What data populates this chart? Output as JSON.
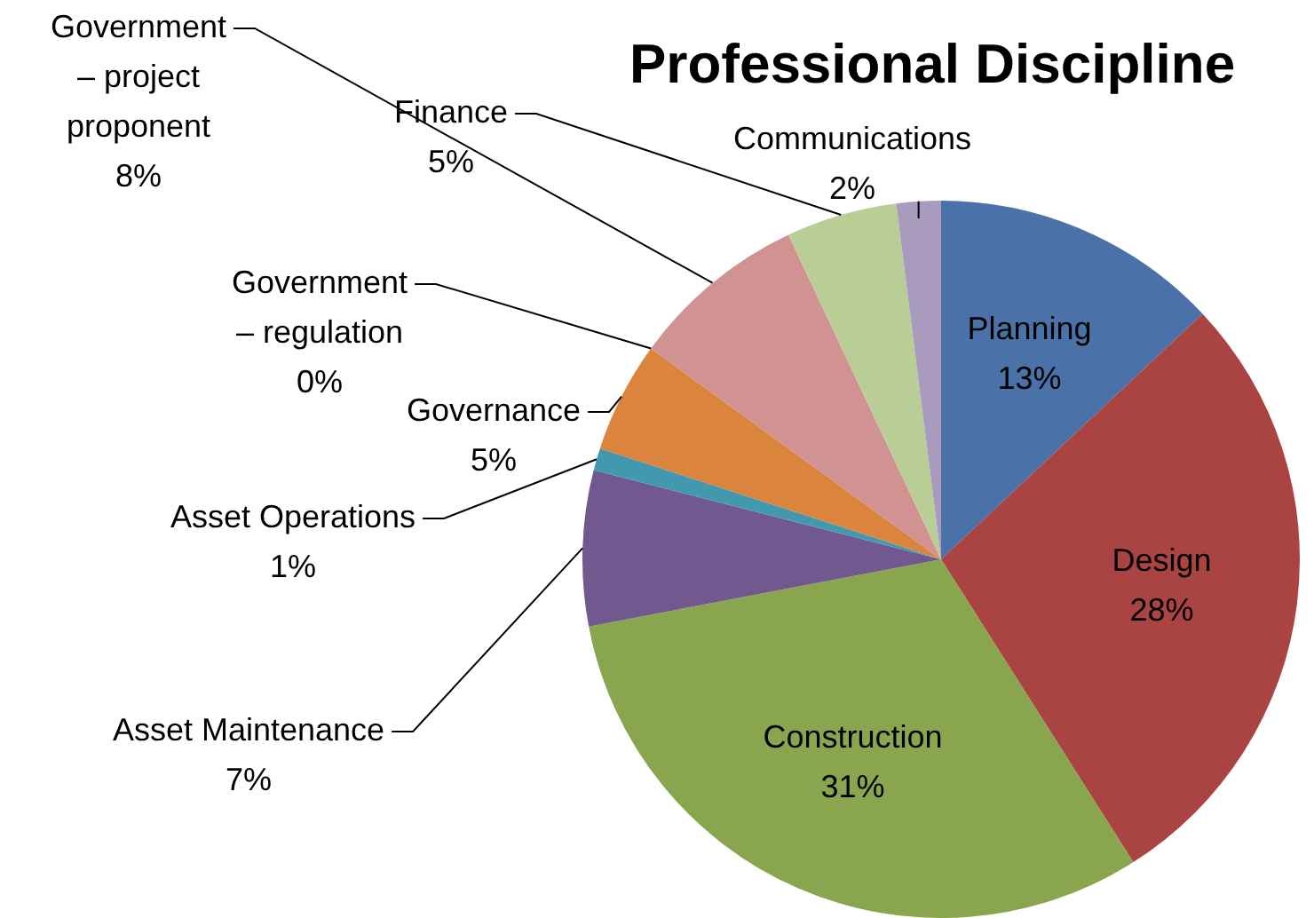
{
  "chart_data": {
    "type": "pie",
    "title": "Professional Discipline",
    "categories": [
      "Planning",
      "Design",
      "Construction",
      "Asset Maintenance",
      "Asset Operations",
      "Governance",
      "Government – regulation",
      "Government – project proponent",
      "Finance",
      "Communications"
    ],
    "values": [
      13,
      28,
      31,
      7,
      1,
      5,
      0,
      8,
      5,
      2
    ],
    "colors": [
      "#4a72a8",
      "#a94442",
      "#89a54e",
      "#71588f",
      "#4198af",
      "#db843d",
      "#93a9cf",
      "#d19392",
      "#b9cd96",
      "#a99bbd"
    ],
    "value_labels": [
      "13%",
      "28%",
      "31%",
      "7%",
      "1%",
      "5%",
      "0%",
      "8%",
      "5%",
      "2%"
    ],
    "legend": false
  }
}
